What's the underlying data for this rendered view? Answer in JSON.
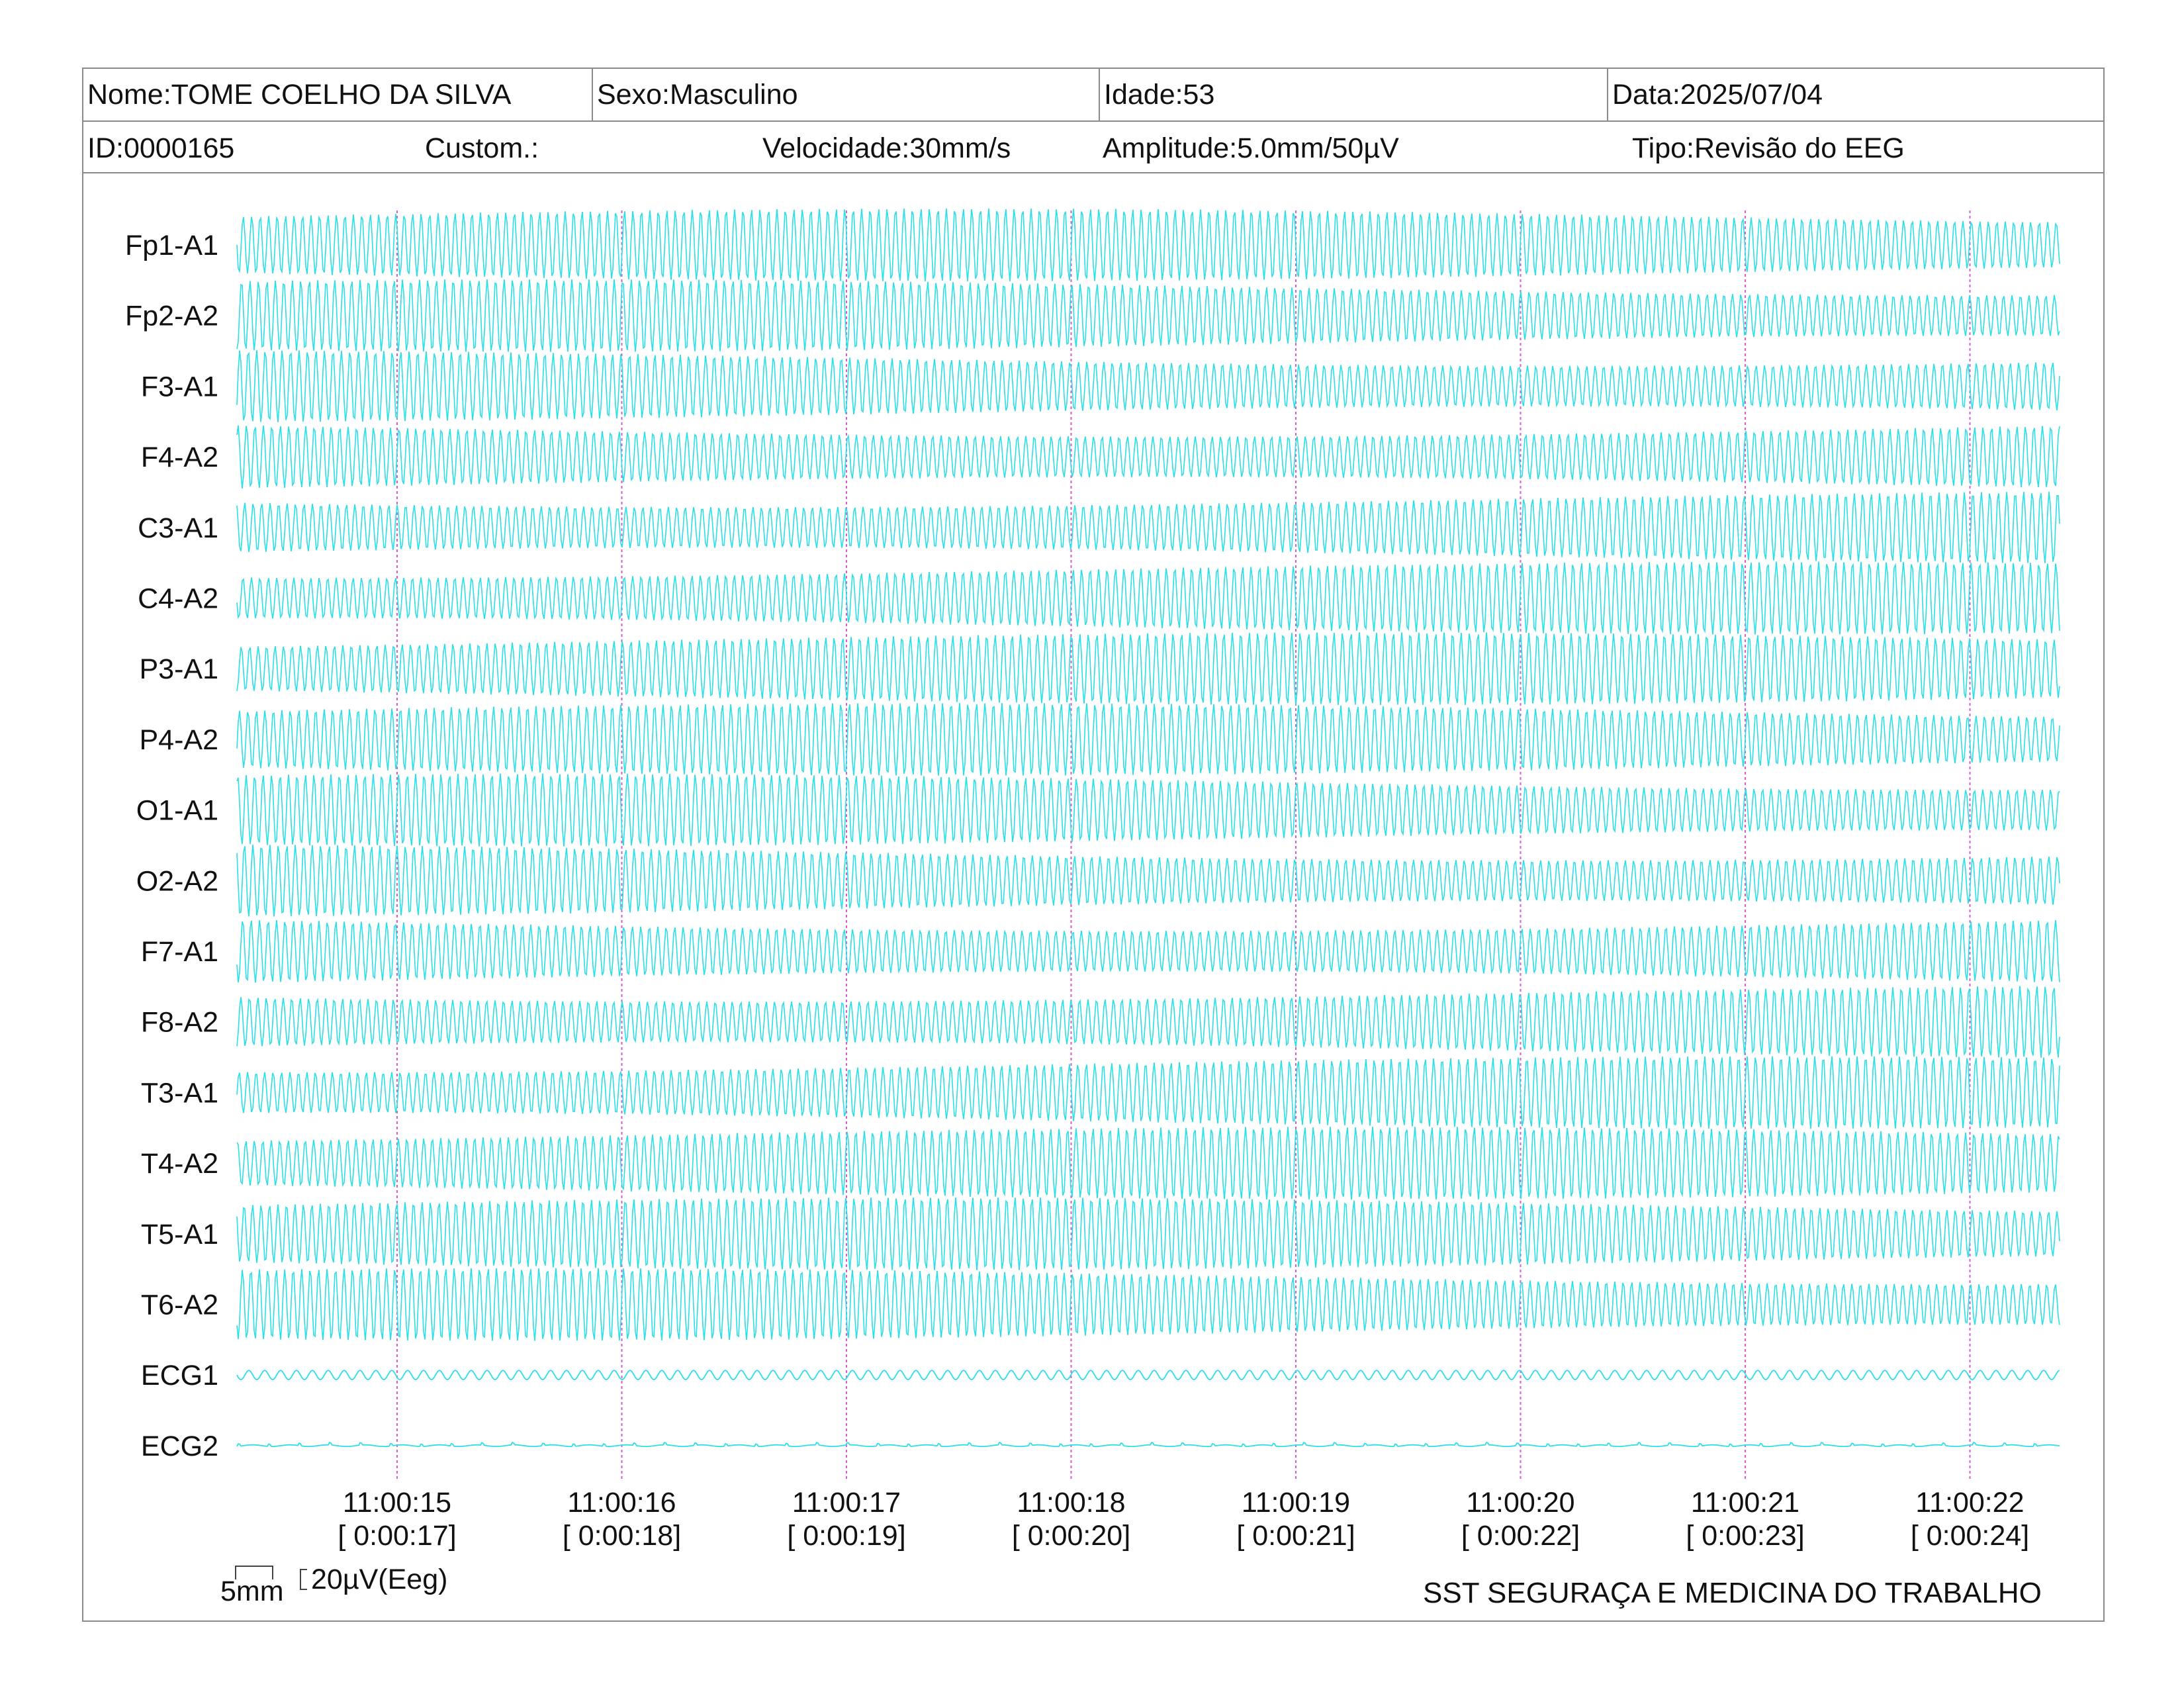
{
  "header": {
    "nome": "Nome:TOME COELHO DA SILVA",
    "sexo": "Sexo:Masculino",
    "idade": "Idade:53",
    "data": "Data:2025/07/04",
    "id": "ID:0000165",
    "custom": "Custom.:",
    "velocidade": "Velocidade:30mm/s",
    "amplitude": "Amplitude:5.0mm/50µV",
    "tipo": "Tipo:Revisão do EEG"
  },
  "channels": [
    "Fp1-A1",
    "Fp2-A2",
    "F3-A1",
    "F4-A2",
    "C3-A1",
    "C4-A2",
    "P3-A1",
    "P4-A2",
    "O1-A1",
    "O2-A2",
    "F7-A1",
    "F8-A2",
    "T3-A1",
    "T4-A2",
    "T5-A1",
    "T6-A2",
    "ECG1",
    "ECG2"
  ],
  "time_marks": [
    {
      "clock": "11:00:15",
      "elapsed": "[ 0:00:17]"
    },
    {
      "clock": "11:00:16",
      "elapsed": "[ 0:00:18]"
    },
    {
      "clock": "11:00:17",
      "elapsed": "[ 0:00:19]"
    },
    {
      "clock": "11:00:18",
      "elapsed": "[ 0:00:20]"
    },
    {
      "clock": "11:00:19",
      "elapsed": "[ 0:00:21]"
    },
    {
      "clock": "11:00:20",
      "elapsed": "[ 0:00:22]"
    },
    {
      "clock": "11:00:21",
      "elapsed": "[ 0:00:23]"
    },
    {
      "clock": "11:00:22",
      "elapsed": "[ 0:00:24]"
    }
  ],
  "scale": {
    "time": "5mm",
    "amplitude": "20µV(Eeg)"
  },
  "footer": {
    "organization": "SST SEGURAÇA E MEDICINA DO TRABALHO"
  },
  "colors": {
    "trace": "#29dfe8",
    "marker": "#d65bd6",
    "border": "#8a8a8a"
  }
}
